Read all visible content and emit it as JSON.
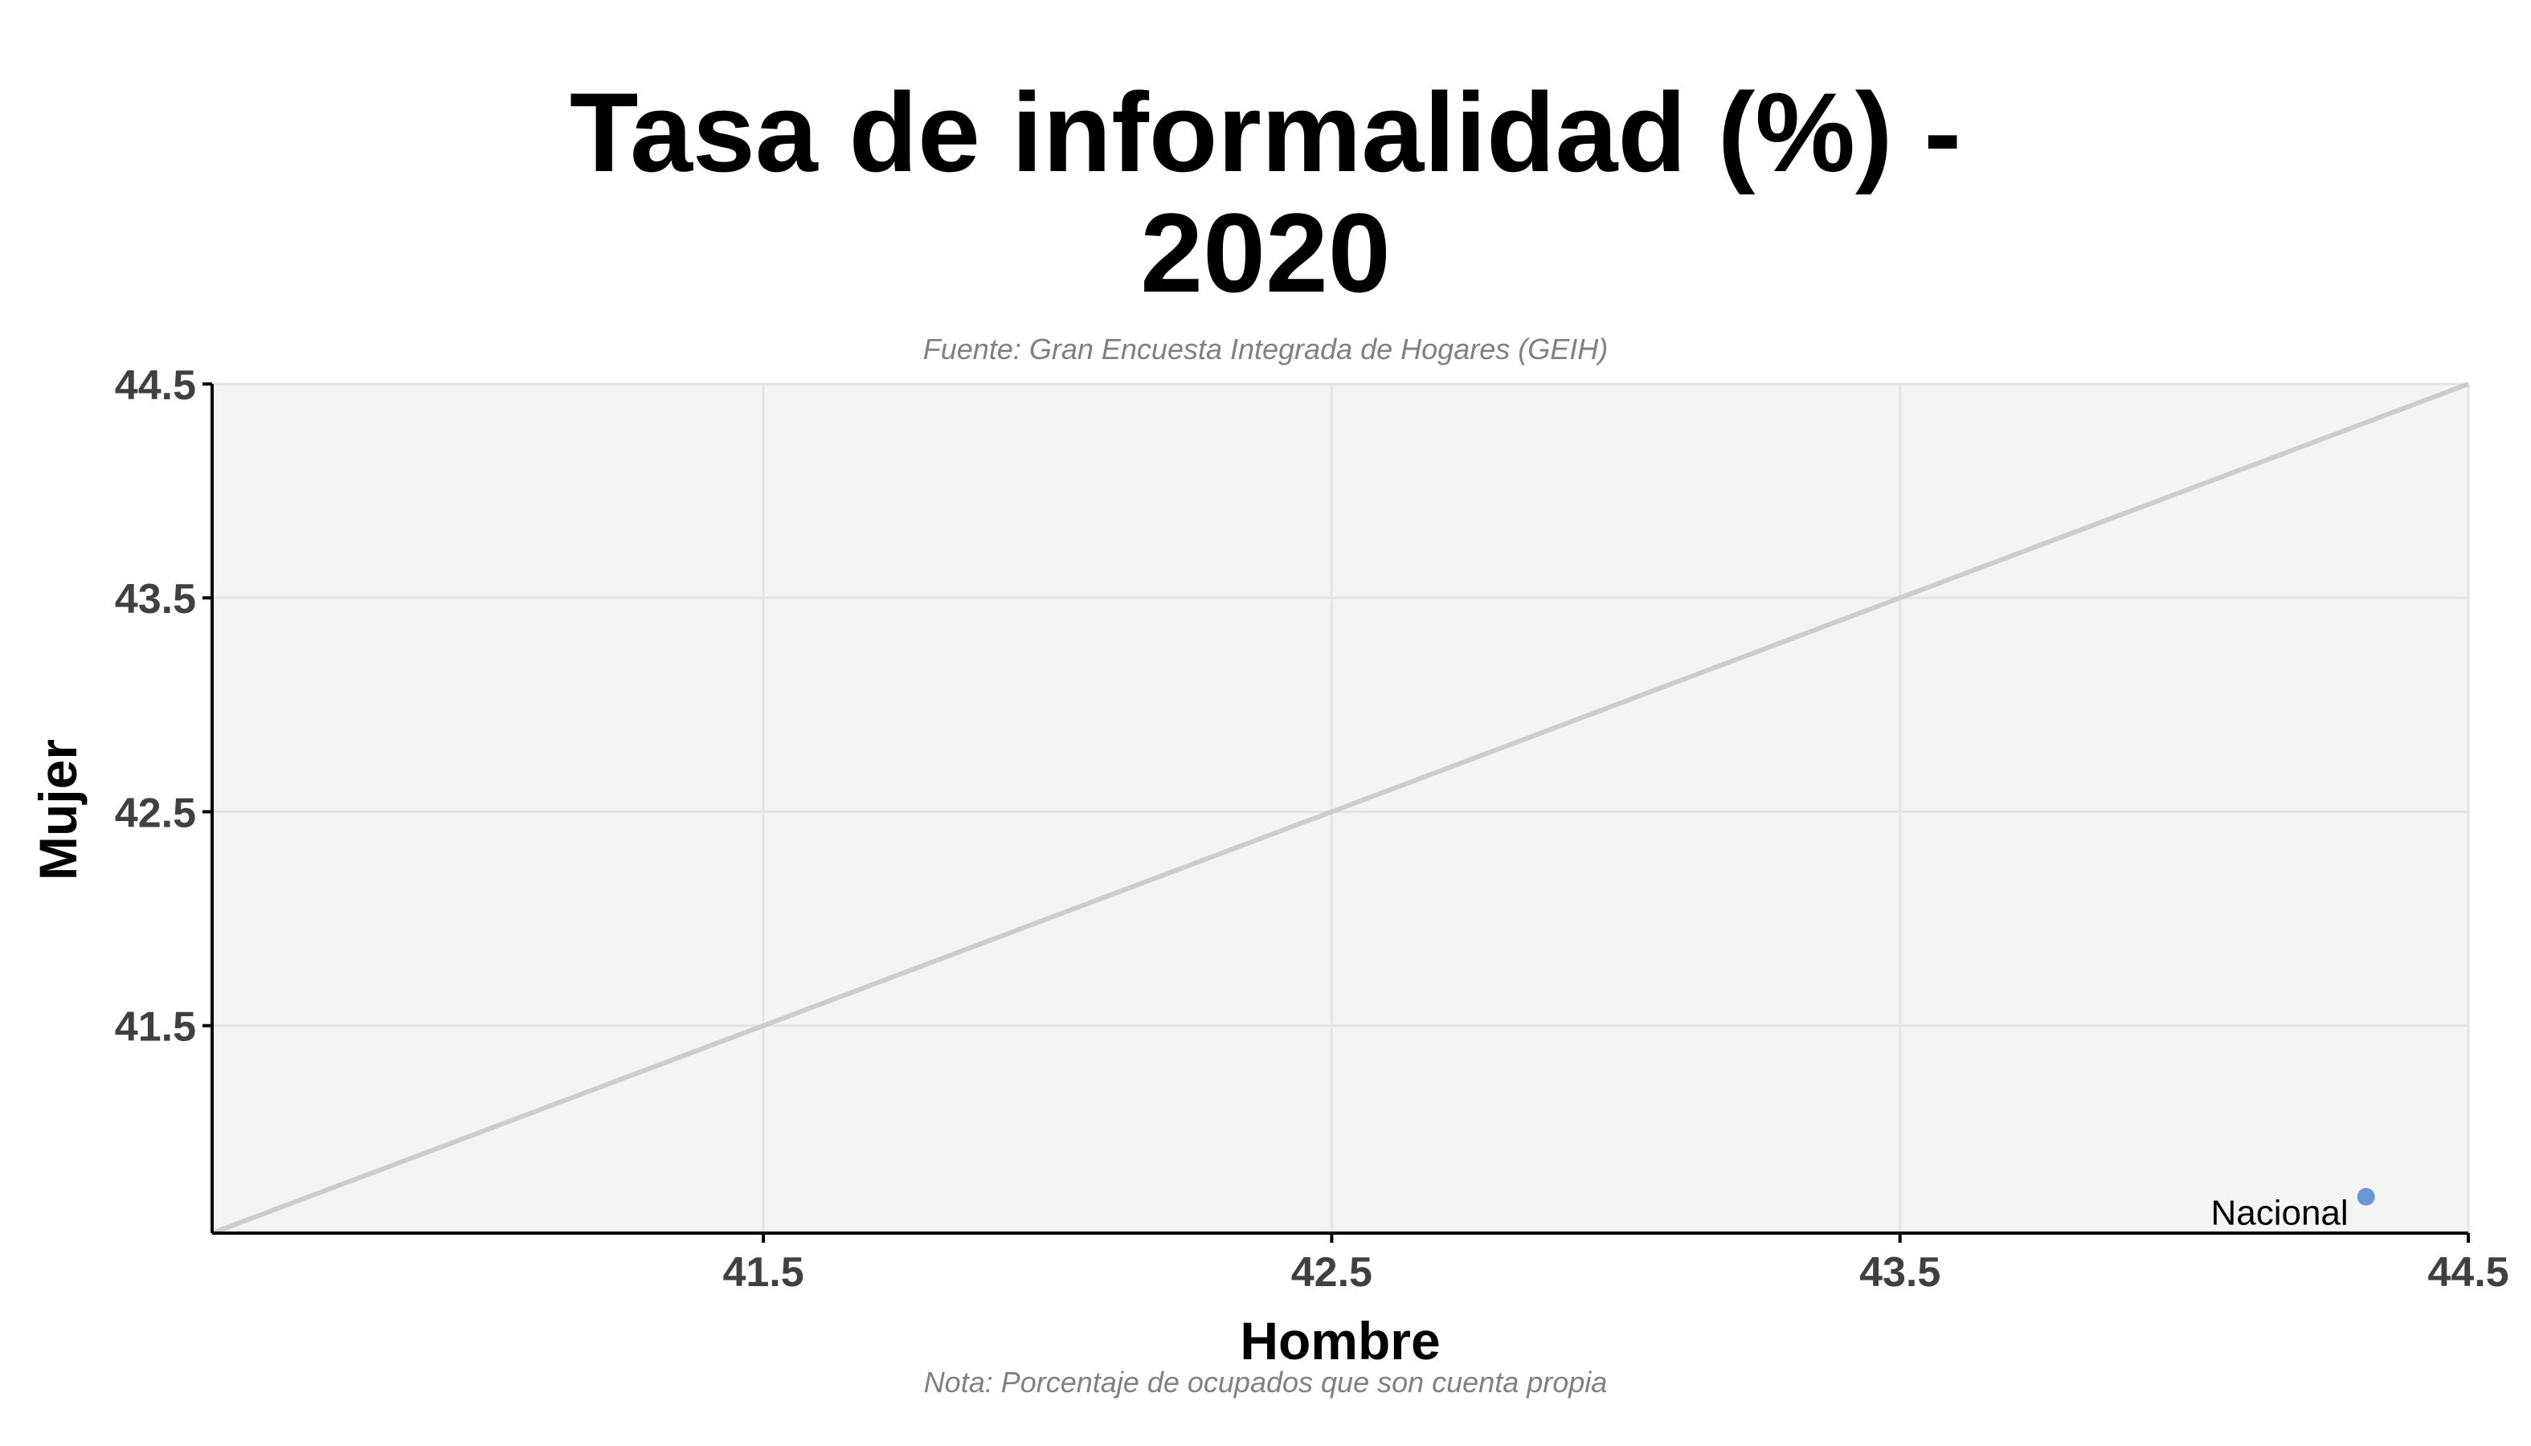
{
  "title_line1": "Tasa de informalidad (%) -",
  "title_line2": "2020",
  "subtitle": "Fuente: Gran Encuesta Integrada de Hogares (GEIH)",
  "caption": "Nota: Porcentaje de ocupados que son cuenta propia",
  "colors": {
    "panel_bg": "#f4f4f4",
    "grid": "#e4e4e4",
    "reference_line": "#cccccc",
    "point": "#6a97d6",
    "axis": "#000000",
    "tick_label": "#404040"
  },
  "chart_data": {
    "type": "scatter",
    "title": "Tasa de informalidad (%) - 2020",
    "subtitle": "Fuente: Gran Encuesta Integrada de Hogares (GEIH)",
    "caption": "Nota: Porcentaje de ocupados que son cuenta propia",
    "xlabel": "Hombre",
    "ylabel": "Mujer",
    "xlim": [
      40.53,
      44.5
    ],
    "ylim": [
      40.53,
      44.5
    ],
    "xticks": [
      41.5,
      42.5,
      43.5,
      44.5
    ],
    "yticks": [
      41.5,
      42.5,
      43.5,
      44.5
    ],
    "reference_line": "y = x",
    "grid": true,
    "points": [
      {
        "label": "Nacional",
        "x": 44.32,
        "y": 40.7
      }
    ]
  }
}
